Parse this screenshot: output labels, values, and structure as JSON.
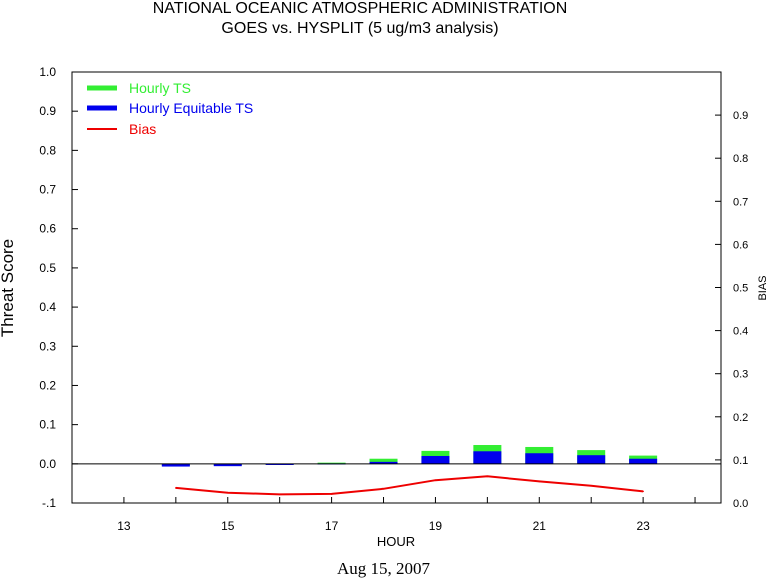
{
  "title_line1": "NATIONAL OCEANIC ATMOSPHERIC ADMINISTRATION",
  "title_line2": "GOES vs. HYSPLIT  (5 ug/m3 analysis)",
  "footer": "Aug 15, 2007",
  "colors": {
    "ts": "#33ee33",
    "ets": "#0000ee",
    "bias": "#ee0000"
  },
  "chart_data": {
    "type": "bar",
    "xlabel": "HOUR",
    "ylabel": "Threat Score",
    "y2label": "BIAS",
    "xlim": [
      12,
      24.5
    ],
    "ylim": [
      -0.1,
      1.0
    ],
    "y2lim": [
      0.0,
      1.0
    ],
    "x_ticks": [
      13,
      15,
      17,
      19,
      21,
      23
    ],
    "y_ticks": [
      "-.1",
      "0.0",
      "0.1",
      "0.2",
      "0.3",
      "0.4",
      "0.5",
      "0.6",
      "0.7",
      "0.8",
      "0.9",
      "1.0"
    ],
    "y2_ticks": [
      "0.0",
      "0.1",
      "0.2",
      "0.3",
      "0.4",
      "0.5",
      "0.6",
      "0.7",
      "0.8",
      "0.9"
    ],
    "x": [
      14,
      15,
      16,
      17,
      18,
      19,
      20,
      21,
      22,
      23
    ],
    "series": [
      {
        "name": "Hourly TS",
        "values": [
          -0.005,
          -0.004,
          -0.002,
          0.003,
          0.013,
          0.033,
          0.048,
          0.043,
          0.035,
          0.021
        ]
      },
      {
        "name": "Hourly Equitable TS",
        "values": [
          -0.007,
          -0.006,
          -0.003,
          0.001,
          0.005,
          0.02,
          0.032,
          0.027,
          0.022,
          0.013
        ]
      },
      {
        "name": "Bias",
        "values": [
          0.035,
          0.024,
          0.02,
          0.021,
          0.033,
          0.053,
          0.062,
          0.05,
          0.04,
          0.027
        ]
      }
    ]
  }
}
